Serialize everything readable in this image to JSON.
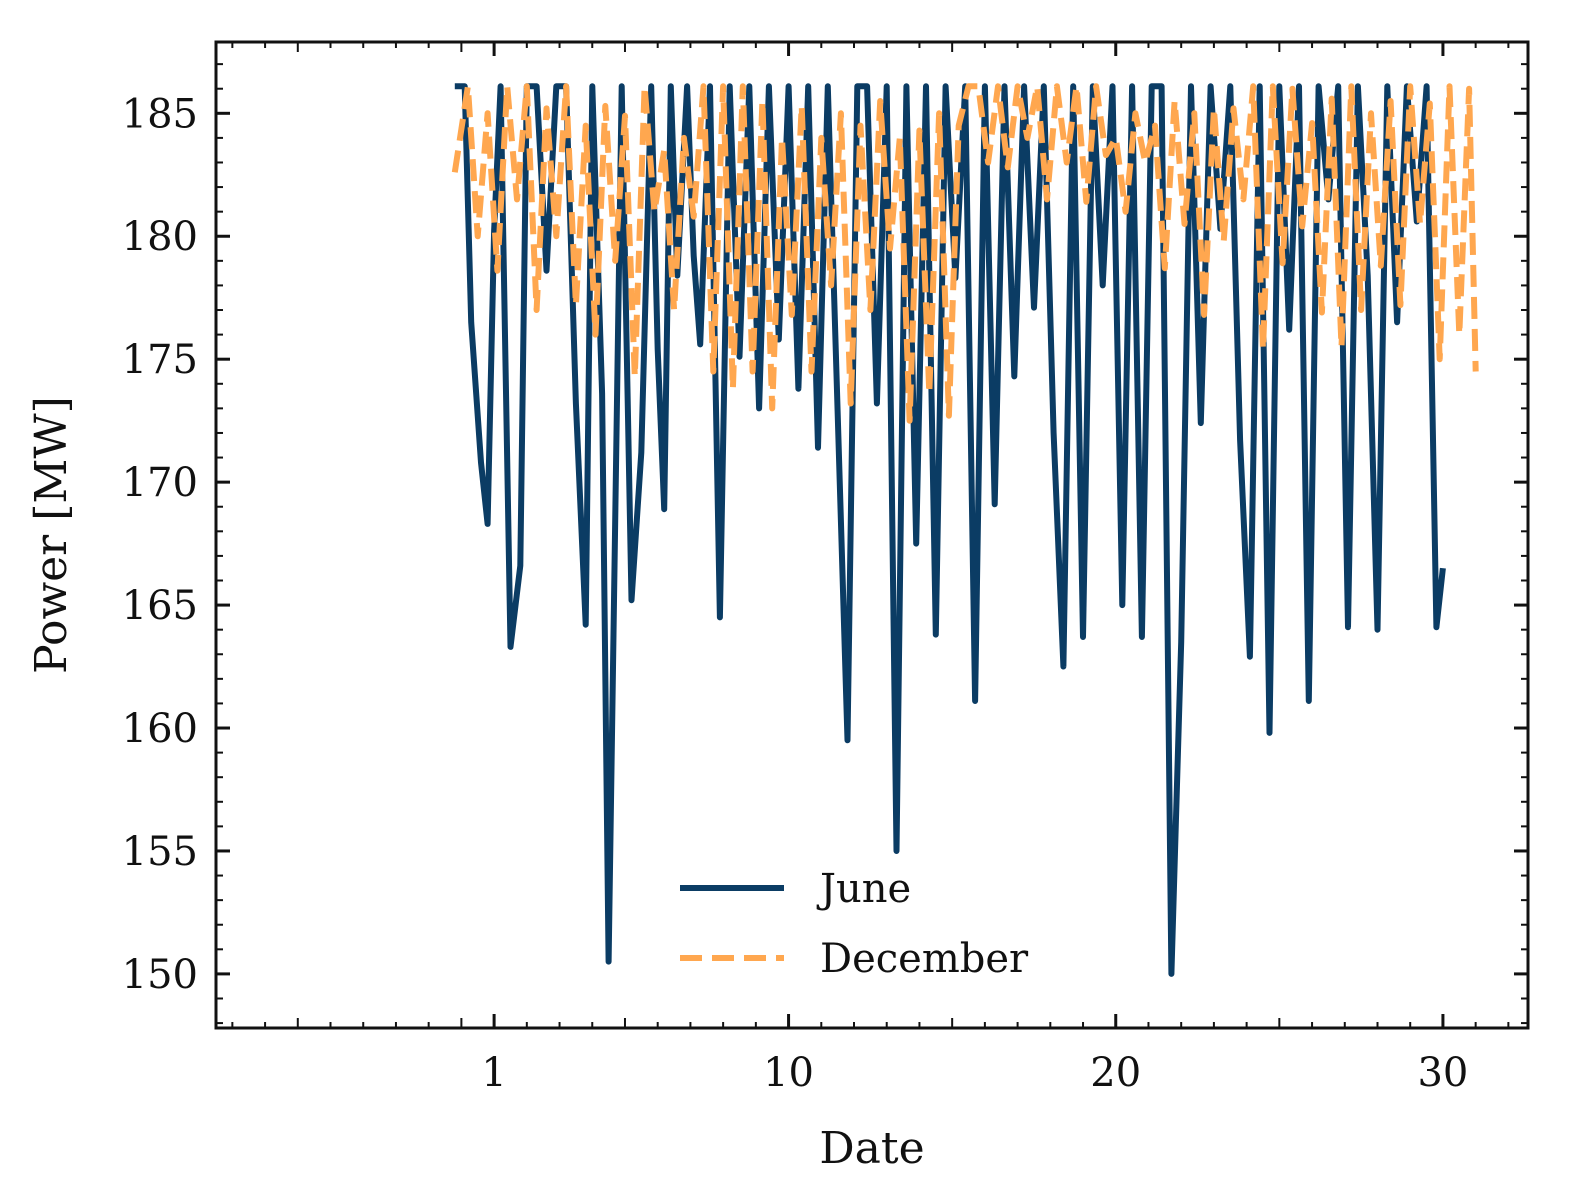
{
  "chart_data": {
    "type": "line",
    "title": "",
    "xlabel": "Date",
    "ylabel": "Power [MW]",
    "xlim": [
      -7.5,
      32.6
    ],
    "ylim": [
      147.8,
      187.9
    ],
    "x_ticks": [
      1,
      10,
      20,
      30
    ],
    "x_tick_labels": [
      "1",
      "10",
      "20",
      "30"
    ],
    "y_ticks": [
      150,
      155,
      160,
      165,
      170,
      175,
      180,
      185
    ],
    "y_tick_labels": [
      "150",
      "155",
      "160",
      "165",
      "170",
      "175",
      "180",
      "185"
    ],
    "grid": false,
    "legend_position": "lower-center",
    "series": [
      {
        "name": "June",
        "color": "#0b3c64",
        "dash": "solid",
        "x": [
          -0.2,
          0.1,
          0.3,
          0.6,
          0.8,
          1.0,
          1.2,
          1.5,
          1.8,
          2.0,
          2.3,
          2.6,
          2.9,
          3.2,
          3.5,
          3.8,
          4.0,
          4.3,
          4.5,
          4.9,
          5.2,
          5.5,
          5.8,
          6.0,
          6.2,
          6.4,
          6.6,
          6.9,
          7.1,
          7.3,
          7.6,
          7.9,
          8.2,
          8.5,
          8.8,
          9.1,
          9.4,
          9.7,
          10.0,
          10.3,
          10.6,
          10.9,
          11.2,
          11.5,
          11.8,
          12.1,
          12.4,
          12.7,
          13.0,
          13.3,
          13.6,
          13.9,
          14.2,
          14.5,
          14.8,
          15.1,
          15.4,
          15.7,
          16.0,
          16.3,
          16.6,
          16.9,
          17.2,
          17.5,
          17.8,
          18.1,
          18.4,
          18.7,
          19.0,
          19.3,
          19.6,
          19.9,
          20.2,
          20.5,
          20.8,
          21.1,
          21.4,
          21.7,
          22.0,
          22.3,
          22.6,
          22.9,
          23.2,
          23.5,
          23.8,
          24.1,
          24.4,
          24.7,
          25.0,
          25.3,
          25.6,
          25.9,
          26.2,
          26.5,
          26.8,
          27.1,
          27.4,
          27.7,
          28.0,
          28.3,
          28.6,
          28.9,
          29.2,
          29.5,
          29.8,
          30.0
        ],
        "values": [
          186.1,
          186.1,
          176.5,
          170.8,
          168.3,
          180.2,
          186.1,
          163.3,
          166.6,
          186.1,
          186.1,
          178.6,
          186.1,
          186.1,
          173.2,
          164.2,
          186.1,
          173.6,
          150.5,
          186.1,
          165.2,
          171.2,
          186.1,
          175.4,
          168.9,
          186.1,
          178.4,
          186.1,
          179.2,
          175.6,
          186.1,
          164.5,
          186.1,
          175.1,
          186.1,
          173.0,
          186.1,
          175.8,
          186.1,
          173.8,
          186.1,
          171.4,
          186.1,
          172.9,
          159.5,
          186.1,
          186.1,
          173.2,
          186.1,
          155.0,
          186.1,
          167.5,
          186.1,
          163.8,
          186.1,
          178.3,
          186.1,
          161.1,
          186.1,
          169.1,
          186.1,
          174.3,
          186.1,
          177.1,
          186.1,
          172.0,
          162.5,
          186.1,
          163.7,
          186.1,
          178.0,
          186.1,
          165.0,
          186.1,
          163.7,
          186.1,
          186.1,
          150.0,
          163.5,
          186.1,
          172.4,
          186.1,
          180.3,
          186.1,
          171.7,
          162.9,
          186.1,
          159.8,
          186.1,
          176.2,
          186.1,
          161.1,
          186.1,
          181.5,
          186.1,
          164.1,
          186.1,
          178.4,
          164.0,
          186.1,
          176.5,
          186.1,
          180.6,
          186.1,
          164.1,
          166.5
        ]
      },
      {
        "name": "December",
        "color": "#ffa74f",
        "dash": "dashed",
        "x": [
          -0.2,
          0.2,
          0.5,
          0.8,
          1.1,
          1.4,
          1.7,
          2.0,
          2.3,
          2.6,
          2.9,
          3.2,
          3.5,
          3.8,
          4.1,
          4.4,
          4.7,
          5.0,
          5.3,
          5.6,
          5.9,
          6.2,
          6.5,
          6.8,
          7.1,
          7.4,
          7.7,
          8.0,
          8.3,
          8.6,
          8.9,
          9.2,
          9.5,
          9.8,
          10.1,
          10.4,
          10.7,
          11.0,
          11.3,
          11.6,
          11.9,
          12.2,
          12.5,
          12.8,
          13.1,
          13.4,
          13.7,
          14.0,
          14.3,
          14.6,
          14.9,
          15.2,
          15.5,
          15.8,
          16.1,
          16.4,
          16.7,
          17.0,
          17.3,
          17.6,
          17.9,
          18.2,
          18.5,
          18.8,
          19.1,
          19.4,
          19.7,
          20.0,
          20.3,
          20.6,
          20.9,
          21.2,
          21.5,
          21.8,
          22.1,
          22.4,
          22.7,
          23.0,
          23.3,
          23.6,
          23.9,
          24.2,
          24.5,
          24.8,
          25.1,
          25.4,
          25.7,
          26.0,
          26.3,
          26.6,
          26.9,
          27.2,
          27.5,
          27.8,
          28.1,
          28.4,
          28.7,
          29.0,
          29.3,
          29.6,
          29.9,
          30.2,
          30.5,
          30.8,
          31.0
        ],
        "values": [
          182.6,
          186.1,
          180.0,
          185.0,
          178.6,
          186.1,
          181.5,
          186.1,
          177.0,
          185.2,
          180.0,
          186.1,
          177.2,
          184.5,
          176.0,
          185.3,
          179.0,
          184.9,
          174.3,
          186.1,
          181.0,
          183.5,
          177.0,
          184.0,
          180.8,
          186.1,
          174.5,
          186.1,
          173.8,
          186.1,
          174.5,
          185.5,
          173.0,
          184.0,
          176.8,
          185.3,
          174.5,
          184.0,
          178.0,
          185.0,
          173.2,
          184.5,
          177.0,
          185.5,
          179.5,
          184.0,
          172.5,
          184.3,
          173.6,
          185.0,
          172.7,
          184.5,
          186.1,
          186.1,
          183.0,
          186.1,
          182.8,
          186.1,
          184.0,
          186.1,
          181.5,
          186.1,
          183.0,
          186.1,
          181.4,
          186.1,
          183.3,
          184.0,
          181.0,
          185.0,
          183.0,
          184.5,
          178.7,
          185.5,
          180.5,
          185.0,
          176.8,
          185.2,
          179.8,
          185.2,
          181.5,
          186.1,
          175.4,
          186.1,
          178.9,
          186.0,
          180.4,
          184.6,
          176.9,
          185.6,
          175.5,
          186.1,
          177.0,
          185.0,
          178.8,
          185.5,
          177.2,
          186.1,
          180.5,
          185.4,
          175.0,
          186.1,
          176.0,
          186.0,
          174.5
        ]
      }
    ]
  }
}
